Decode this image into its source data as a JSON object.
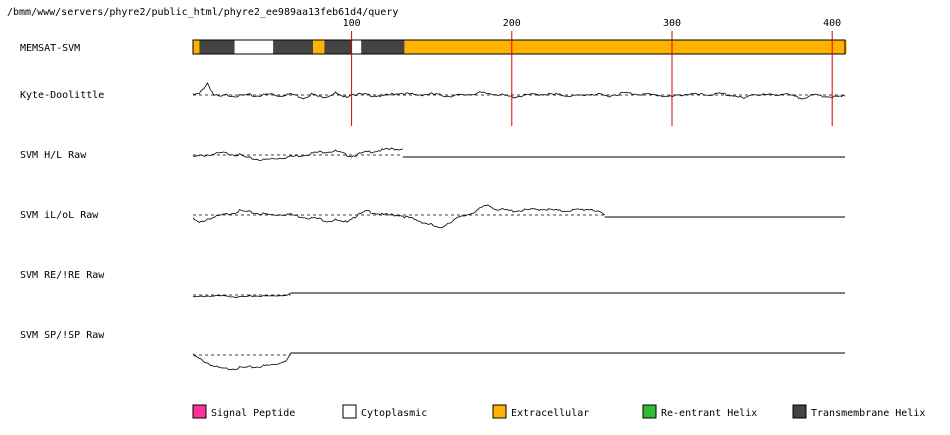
{
  "path_label": "/bmm/www/servers/phyre2/public_html/phyre2_ee989aa13feb61d4/query",
  "colors": {
    "signal_peptide": "#ff3399",
    "cytoplasmic": "#ffffff",
    "extracellular": "#ffb300",
    "reentrant_helix": "#33bb33",
    "transmembrane_helix": "#444444",
    "marker": "#dd0000"
  },
  "track_labels": {
    "memsat": "MEMSAT-SVM",
    "kd": "Kyte-Doolittle",
    "hl": "SVM H/L Raw",
    "ilol": "SVM iL/oL Raw",
    "re": "SVM RE/!RE Raw",
    "sp": "SVM SP/!SP Raw"
  },
  "legend": [
    {
      "key": "signal_peptide",
      "label": "Signal Peptide"
    },
    {
      "key": "cytoplasmic",
      "label": "Cytoplasmic"
    },
    {
      "key": "extracellular",
      "label": "Extracellular"
    },
    {
      "key": "reentrant_helix",
      "label": "Re-entrant Helix"
    },
    {
      "key": "transmembrane_helix",
      "label": "Transmembrane Helix"
    }
  ],
  "chart_data": {
    "type": "line",
    "x_range": [
      1,
      408
    ],
    "tick_labels": [
      {
        "pos": 100,
        "label": "100"
      },
      {
        "pos": 200,
        "label": "200"
      },
      {
        "pos": 300,
        "label": "300"
      },
      {
        "pos": 400,
        "label": "400"
      }
    ],
    "memsat_segments": [
      {
        "start": 1,
        "end": 4,
        "type": "extracellular"
      },
      {
        "start": 5,
        "end": 26,
        "type": "transmembrane_helix"
      },
      {
        "start": 27,
        "end": 50,
        "type": "cytoplasmic"
      },
      {
        "start": 51,
        "end": 75,
        "type": "transmembrane_helix"
      },
      {
        "start": 76,
        "end": 82,
        "type": "extracellular"
      },
      {
        "start": 83,
        "end": 99,
        "type": "transmembrane_helix"
      },
      {
        "start": 100,
        "end": 105,
        "type": "cytoplasmic"
      },
      {
        "start": 106,
        "end": 132,
        "type": "transmembrane_helix"
      },
      {
        "start": 133,
        "end": 408,
        "type": "extracellular"
      }
    ],
    "profiles": [
      {
        "key": "kd",
        "end": 408,
        "amp": 12,
        "baseline": 0,
        "points": [
          [
            1,
            0
          ],
          [
            5,
            1
          ],
          [
            10,
            12
          ],
          [
            14,
            0
          ],
          [
            18,
            -2
          ],
          [
            22,
            0
          ],
          [
            30,
            -1
          ],
          [
            35,
            0
          ],
          [
            40,
            -1
          ],
          [
            50,
            1
          ],
          [
            55,
            -1
          ],
          [
            60,
            1
          ],
          [
            65,
            0
          ],
          [
            70,
            -3
          ],
          [
            75,
            1
          ],
          [
            80,
            -2
          ],
          [
            85,
            -1
          ],
          [
            90,
            2
          ],
          [
            95,
            -3
          ],
          [
            100,
            1
          ],
          [
            110,
            0
          ],
          [
            120,
            -1
          ],
          [
            130,
            2
          ],
          [
            140,
            0
          ],
          [
            150,
            1
          ],
          [
            160,
            -1
          ],
          [
            170,
            0
          ],
          [
            180,
            2
          ],
          [
            190,
            1
          ],
          [
            200,
            -2
          ],
          [
            210,
            0
          ],
          [
            220,
            1
          ],
          [
            230,
            0
          ],
          [
            240,
            -1
          ],
          [
            250,
            1
          ],
          [
            260,
            -1
          ],
          [
            270,
            2
          ],
          [
            280,
            1
          ],
          [
            290,
            0
          ],
          [
            300,
            -2
          ],
          [
            305,
            0
          ],
          [
            310,
            1
          ],
          [
            320,
            0
          ],
          [
            330,
            1
          ],
          [
            340,
            -1
          ],
          [
            345,
            -4
          ],
          [
            350,
            1
          ],
          [
            360,
            0
          ],
          [
            370,
            1
          ],
          [
            380,
            -3
          ],
          [
            390,
            0
          ],
          [
            395,
            -1
          ],
          [
            400,
            -2
          ],
          [
            404,
            -2
          ],
          [
            408,
            -1
          ]
        ]
      },
      {
        "key": "hl",
        "end": 132,
        "amp": 10,
        "baseline": -2,
        "points": [
          [
            1,
            -2
          ],
          [
            10,
            0
          ],
          [
            20,
            2
          ],
          [
            30,
            0
          ],
          [
            35,
            -3
          ],
          [
            40,
            -4
          ],
          [
            45,
            -5
          ],
          [
            50,
            -4
          ],
          [
            60,
            -2
          ],
          [
            70,
            0
          ],
          [
            80,
            3
          ],
          [
            90,
            4
          ],
          [
            95,
            1
          ],
          [
            100,
            -1
          ],
          [
            105,
            1
          ],
          [
            110,
            3
          ],
          [
            120,
            5
          ],
          [
            125,
            6
          ],
          [
            128,
            6
          ],
          [
            132,
            6
          ]
        ]
      },
      {
        "key": "ilol",
        "end": 258,
        "amp": 16,
        "baseline": -2,
        "points": [
          [
            1,
            -4
          ],
          [
            5,
            -8
          ],
          [
            10,
            -4
          ],
          [
            20,
            0
          ],
          [
            30,
            4
          ],
          [
            40,
            2
          ],
          [
            50,
            0
          ],
          [
            60,
            1
          ],
          [
            70,
            -2
          ],
          [
            80,
            -4
          ],
          [
            85,
            -6
          ],
          [
            90,
            -5
          ],
          [
            95,
            -8
          ],
          [
            100,
            -3
          ],
          [
            110,
            4
          ],
          [
            120,
            0
          ],
          [
            130,
            0
          ],
          [
            140,
            -5
          ],
          [
            150,
            -10
          ],
          [
            155,
            -14
          ],
          [
            158,
            -10
          ],
          [
            165,
            -4
          ],
          [
            175,
            2
          ],
          [
            180,
            6
          ],
          [
            185,
            10
          ],
          [
            190,
            6
          ],
          [
            200,
            4
          ],
          [
            210,
            5
          ],
          [
            220,
            6
          ],
          [
            230,
            4
          ],
          [
            240,
            5
          ],
          [
            250,
            6
          ],
          [
            255,
            2
          ],
          [
            258,
            0
          ]
        ]
      },
      {
        "key": "re",
        "end": 62,
        "amp": 6,
        "baseline": 2,
        "points": [
          [
            1,
            -2
          ],
          [
            10,
            -1
          ],
          [
            20,
            -1
          ],
          [
            30,
            -2
          ],
          [
            40,
            -1
          ],
          [
            50,
            -1
          ],
          [
            60,
            0
          ],
          [
            62,
            2
          ]
        ]
      },
      {
        "key": "sp",
        "end": 62,
        "amp": 16,
        "baseline": 2,
        "points": [
          [
            1,
            0
          ],
          [
            5,
            -4
          ],
          [
            10,
            -8
          ],
          [
            15,
            -12
          ],
          [
            20,
            -14
          ],
          [
            30,
            -13
          ],
          [
            40,
            -12
          ],
          [
            50,
            -10
          ],
          [
            55,
            -8
          ],
          [
            60,
            -4
          ],
          [
            62,
            2
          ]
        ]
      }
    ]
  }
}
